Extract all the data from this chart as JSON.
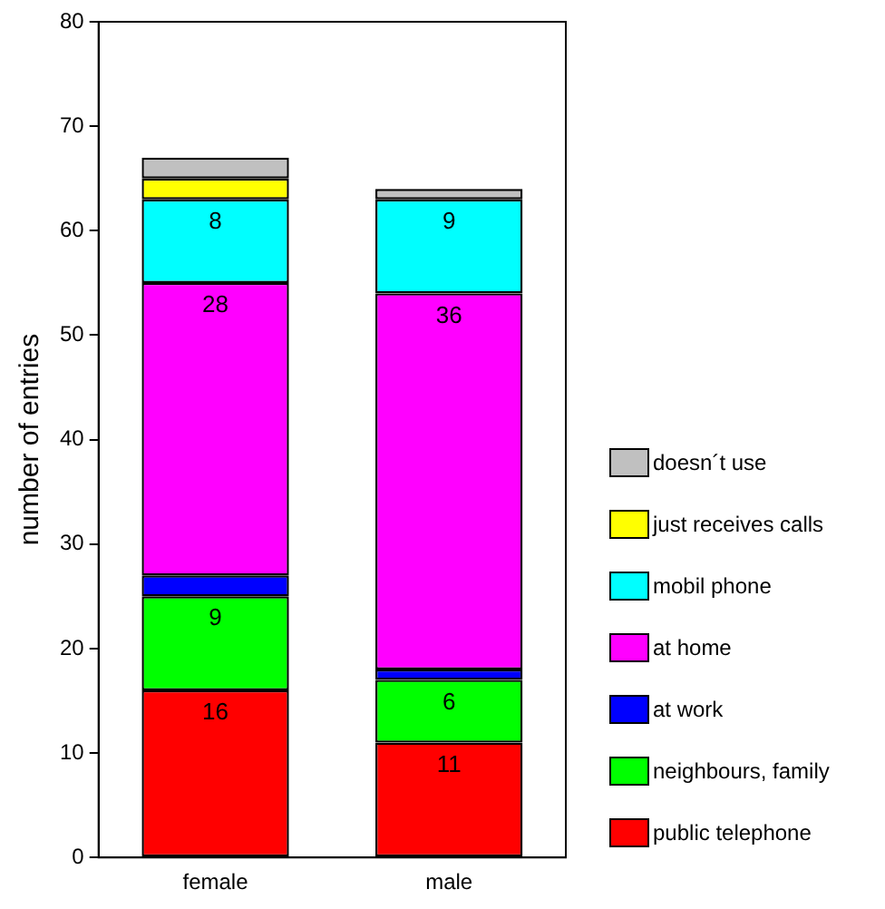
{
  "chart_data": {
    "type": "bar",
    "stacked": true,
    "ylabel": "number of entries",
    "categories": [
      "female",
      "male"
    ],
    "ylim": [
      0,
      80
    ],
    "yticks": [
      0,
      10,
      20,
      30,
      40,
      50,
      60,
      70,
      80
    ],
    "grid": false,
    "legend": "right",
    "series": [
      {
        "name": "public telephone",
        "color": "#ff0000",
        "values": [
          16,
          11
        ],
        "value_labels": [
          "16",
          "11"
        ]
      },
      {
        "name": "neighbours, family",
        "color": "#00ff00",
        "values": [
          9,
          6
        ],
        "value_labels": [
          "9",
          "6"
        ]
      },
      {
        "name": "at work",
        "color": "#0000ff",
        "values": [
          2,
          1
        ],
        "value_labels": [
          null,
          null
        ]
      },
      {
        "name": "at home",
        "color": "#ff00ff",
        "values": [
          28,
          36
        ],
        "value_labels": [
          "28",
          "36"
        ]
      },
      {
        "name": "mobil phone",
        "color": "#00ffff",
        "values": [
          8,
          9
        ],
        "value_labels": [
          "8",
          "9"
        ]
      },
      {
        "name": "just receives calls",
        "color": "#ffff00",
        "values": [
          2,
          0
        ],
        "value_labels": [
          null,
          null
        ]
      },
      {
        "name": "doesn´t use",
        "color": "#c0c0c0",
        "values": [
          2,
          1
        ],
        "value_labels": [
          null,
          null
        ]
      }
    ]
  }
}
